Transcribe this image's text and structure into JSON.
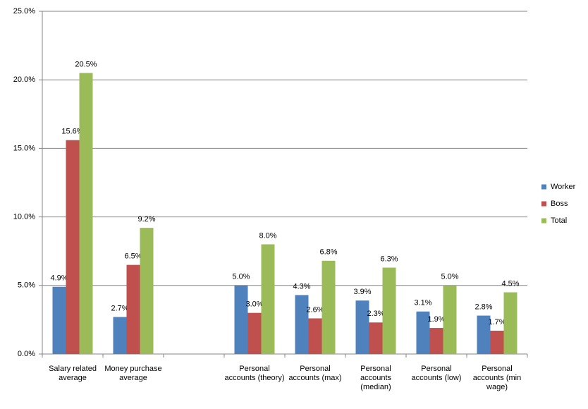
{
  "chart_data": {
    "type": "bar",
    "categories": [
      "Salary related average",
      "Money purchase average",
      null,
      "Personal accounts (theory)",
      "Personal accounts (max)",
      "Personal accounts (median)",
      "Personal accounts (low)",
      "Personal accounts (min wage)"
    ],
    "series": [
      {
        "name": "Worker",
        "color": "#4f81bd",
        "values": [
          4.9,
          2.7,
          null,
          5.0,
          4.3,
          3.9,
          3.1,
          2.8
        ],
        "value_labels": [
          "4.9%",
          "2.7%",
          null,
          "5.0%",
          "4.3%",
          "3.9%",
          "3.1%",
          "2.8%"
        ]
      },
      {
        "name": "Boss",
        "color": "#c0504d",
        "values": [
          15.6,
          6.5,
          null,
          3.0,
          2.6,
          2.3,
          1.9,
          1.7
        ],
        "value_labels": [
          "15.6%",
          "6.5%",
          null,
          "3.0%",
          "2.6%",
          "2.3%",
          "1.9%",
          "1.7%"
        ]
      },
      {
        "name": "Total",
        "color": "#9bbb59",
        "values": [
          20.5,
          9.2,
          null,
          8.0,
          6.8,
          6.3,
          5.0,
          4.5
        ],
        "value_labels": [
          "20.5%",
          "9.2%",
          null,
          "8.0%",
          "6.8%",
          "6.3%",
          "5.0%",
          "4.5%"
        ]
      }
    ],
    "ylim": [
      0,
      25
    ],
    "yticks": [
      {
        "value": 0,
        "label": "0.0%"
      },
      {
        "value": 5,
        "label": "5.0%"
      },
      {
        "value": 10,
        "label": "10.0%"
      },
      {
        "value": 15,
        "label": "15.0%"
      },
      {
        "value": 20,
        "label": "20.0%"
      },
      {
        "value": 25,
        "label": "25.0%"
      }
    ],
    "grid": true,
    "legend": "right"
  }
}
